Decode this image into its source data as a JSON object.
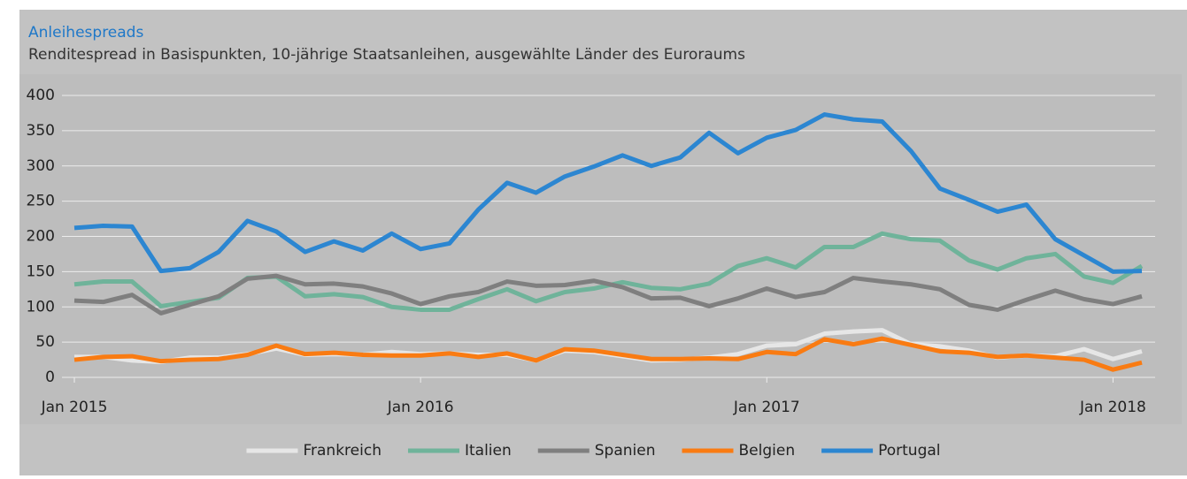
{
  "chart_data": {
    "type": "line",
    "title": "Anleihespreads",
    "subtitle": "Renditespread in Basispunkten, 10-jährige Staatsanleihen, ausgewählte Länder des Euroraums",
    "categories": [
      "Jan 2015",
      null,
      null,
      null,
      null,
      null,
      null,
      null,
      null,
      null,
      null,
      null,
      "Jan 2016",
      null,
      null,
      null,
      null,
      null,
      null,
      null,
      null,
      null,
      null,
      null,
      "Jan 2017",
      null,
      null,
      null,
      null,
      null,
      null,
      null,
      null,
      null,
      null,
      null,
      "Jan 2018",
      null
    ],
    "ylim": [
      0,
      400
    ],
    "yticks": [
      0,
      50,
      100,
      150,
      200,
      250,
      300,
      350,
      400
    ],
    "grid": true,
    "legend": "bottom",
    "series": [
      {
        "name": "Frankreich",
        "color": "#e6e6e6",
        "values": [
          29,
          29,
          24,
          22,
          28,
          28,
          33,
          41,
          32,
          33,
          32,
          36,
          33,
          34,
          32,
          32,
          24,
          38,
          36,
          30,
          24,
          25,
          28,
          33,
          45,
          47,
          62,
          65,
          67,
          47,
          44,
          38,
          28,
          31,
          30,
          40,
          26,
          37
        ]
      },
      {
        "name": "Italien",
        "color": "#6fb39a",
        "values": [
          132,
          136,
          136,
          101,
          107,
          113,
          141,
          143,
          115,
          118,
          114,
          100,
          96,
          96,
          111,
          125,
          108,
          121,
          126,
          135,
          127,
          125,
          133,
          158,
          169,
          156,
          185,
          185,
          204,
          196,
          194,
          166,
          153,
          169,
          175,
          143,
          134,
          158
        ]
      },
      {
        "name": "Spanien",
        "color": "#7f7f7f",
        "values": [
          109,
          107,
          117,
          91,
          103,
          115,
          140,
          144,
          132,
          133,
          129,
          119,
          104,
          115,
          121,
          136,
          130,
          131,
          137,
          128,
          112,
          113,
          101,
          112,
          126,
          114,
          121,
          141,
          136,
          132,
          125,
          103,
          96,
          110,
          123,
          111,
          104,
          115
        ]
      },
      {
        "name": "Belgien",
        "color": "#f97b12",
        "values": [
          25,
          29,
          30,
          23,
          25,
          26,
          32,
          45,
          33,
          35,
          32,
          31,
          31,
          34,
          29,
          34,
          24,
          40,
          38,
          32,
          26,
          26,
          27,
          26,
          36,
          33,
          54,
          47,
          55,
          46,
          37,
          35,
          29,
          31,
          28,
          25,
          11,
          21
        ]
      },
      {
        "name": "Portugal",
        "color": "#2c86d1",
        "values": [
          212,
          215,
          214,
          151,
          155,
          178,
          222,
          207,
          178,
          193,
          180,
          204,
          182,
          190,
          238,
          276,
          262,
          285,
          299,
          315,
          300,
          312,
          347,
          318,
          340,
          351,
          373,
          366,
          363,
          321,
          268,
          252,
          235,
          245,
          196,
          173,
          150,
          151
        ]
      }
    ]
  }
}
